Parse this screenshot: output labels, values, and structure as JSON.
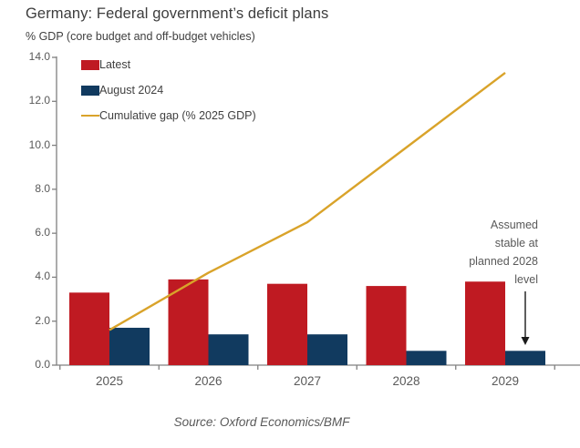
{
  "header": {
    "title": "Germany: Federal government’s deficit plans",
    "subtitle": "% GDP (core budget and off-budget vehicles)"
  },
  "colors": {
    "latest_bar": "#bf1a22",
    "august_bar": "#113a5f",
    "gap_line": "#d9a32a",
    "axis": "#808080",
    "text_gray": "#595959",
    "arrow": "#1a1a1a"
  },
  "legend": {
    "position": "top-left-inside",
    "items": [
      {
        "label": "Latest",
        "swatch": "bar"
      },
      {
        "label": "August 2024",
        "swatch": "bar"
      },
      {
        "label": "Cumulative gap (% 2025 GDP)",
        "swatch": "line"
      }
    ]
  },
  "chart_data": {
    "type": "bar",
    "subtype": "clustered-bars-with-line-overlay",
    "title": "Germany: Federal government’s deficit plans",
    "ylabel": "% GDP (core budget and off-budget vehicles)",
    "xlabel": "",
    "categories": [
      "2025",
      "2026",
      "2027",
      "2028",
      "2029"
    ],
    "series": [
      {
        "name": "Latest",
        "type": "bar",
        "values": [
          3.3,
          3.9,
          3.7,
          3.6,
          3.8
        ]
      },
      {
        "name": "August 2024",
        "type": "bar",
        "values": [
          1.7,
          1.4,
          1.4,
          0.65,
          0.65
        ]
      },
      {
        "name": "Cumulative gap (% 2025 GDP)",
        "type": "line",
        "values": [
          1.6,
          4.2,
          6.5,
          9.9,
          13.3
        ]
      }
    ],
    "ylim": [
      0,
      14
    ],
    "ytick_step": 2,
    "y_tick_labels": [
      "0.0",
      "2.0",
      "4.0",
      "6.0",
      "8.0",
      "10.0",
      "12.0",
      "14.0"
    ],
    "grid": false,
    "legend_position": "upper left"
  },
  "annotation": {
    "text": "Assumed\nstable at\nplanned 2028\nlevel",
    "arrow": "down",
    "target": "2029 August 2024 bar"
  },
  "footer": {
    "source": "Source: Oxford Economics/BMF"
  }
}
